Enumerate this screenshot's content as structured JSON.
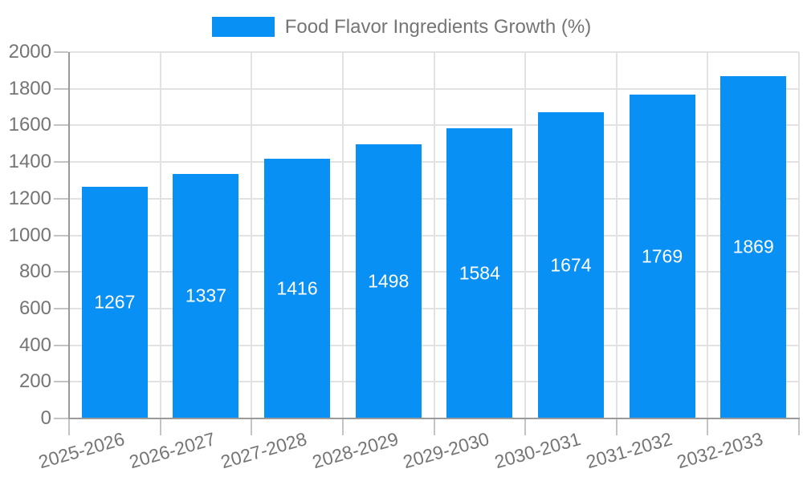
{
  "legend": {
    "label": "Food Flavor Ingredients Growth (%)"
  },
  "chart_data": {
    "type": "bar",
    "title": "Food Flavor Ingredients Growth (%)",
    "categories": [
      "2025-2026",
      "2026-2027",
      "2027-2028",
      "2028-2029",
      "2029-2030",
      "2030-2031",
      "2031-2032",
      "2032-2033"
    ],
    "values": [
      1267,
      1337,
      1416,
      1498,
      1584,
      1674,
      1769,
      1869
    ],
    "value_labels": [
      "1267",
      "1337",
      "1416",
      "1498",
      "1584",
      "1674",
      "1769",
      "1869"
    ],
    "xlabel": "",
    "ylabel": "",
    "ylim": [
      0,
      2000
    ],
    "ytick_step": 200,
    "ytick_labels": [
      "0",
      "200",
      "400",
      "600",
      "800",
      "1000",
      "1200",
      "1400",
      "1600",
      "1800",
      "2000"
    ],
    "grid": true,
    "legend_position": "top-center",
    "value_label_position": "inside-center",
    "colors": {
      "bar": "#0890f5",
      "value_label": "#ffffff",
      "text": "#757575",
      "grid": "#e2e2e2",
      "axis": "#9a9a9a",
      "tick": "#c4c4c4",
      "background": "#ffffff"
    }
  }
}
